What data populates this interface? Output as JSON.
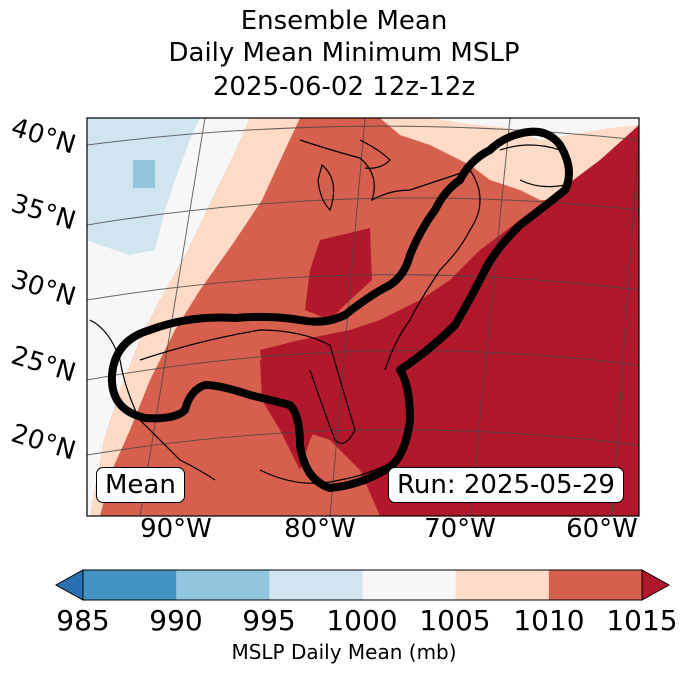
{
  "title": {
    "line1": "Ensemble Mean",
    "line2": "Daily Mean Minimum MSLP",
    "line3": "2025-06-02 12z-12z"
  },
  "map": {
    "lat_labels": [
      "40°N",
      "35°N",
      "30°N",
      "25°N",
      "20°N"
    ],
    "lon_labels": [
      "90°W",
      "80°W",
      "70°W",
      "60°W"
    ],
    "mean_label": "Mean",
    "run_label": "Run: 2025-05-29"
  },
  "colorbar": {
    "ticks": [
      "985",
      "990",
      "995",
      "1000",
      "1005",
      "1010",
      "1015"
    ],
    "label": "MSLP Daily Mean (mb)",
    "colors": [
      "#2c6fb0",
      "#4393c3",
      "#92c5de",
      "#d1e5f0",
      "#f7f7f7",
      "#fddbc7",
      "#d6604d",
      "#b2182b"
    ]
  }
}
